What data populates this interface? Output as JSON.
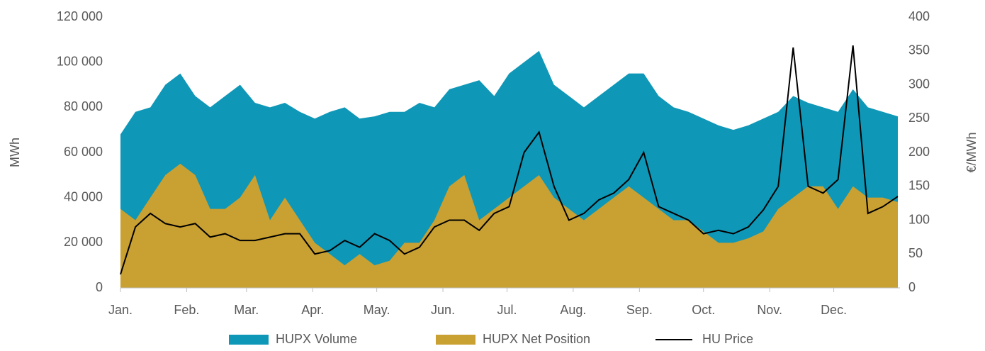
{
  "chart_data": {
    "type": "area-line",
    "x": [
      0,
      7,
      14,
      21,
      28,
      35,
      42,
      49,
      56,
      63,
      70,
      77,
      84,
      91,
      98,
      105,
      112,
      119,
      126,
      133,
      140,
      147,
      154,
      161,
      168,
      175,
      182,
      189,
      196,
      203,
      210,
      217,
      224,
      231,
      238,
      245,
      252,
      259,
      266,
      273,
      280,
      287,
      294,
      301,
      308,
      315,
      322,
      329,
      336,
      343,
      350,
      357,
      364
    ],
    "xlim": [
      0,
      365
    ],
    "xticks": [
      {
        "value": 0,
        "label": "Jan."
      },
      {
        "value": 31,
        "label": "Feb."
      },
      {
        "value": 59,
        "label": "Mar."
      },
      {
        "value": 90,
        "label": "Apr."
      },
      {
        "value": 120,
        "label": "May."
      },
      {
        "value": 151,
        "label": "Jun."
      },
      {
        "value": 181,
        "label": "Jul."
      },
      {
        "value": 212,
        "label": "Aug."
      },
      {
        "value": 243,
        "label": "Sep."
      },
      {
        "value": 273,
        "label": "Oct."
      },
      {
        "value": 304,
        "label": "Nov."
      },
      {
        "value": 334,
        "label": "Dec."
      }
    ],
    "ylabel": "MWh",
    "y2label": "€/MWh",
    "ylim": [
      0,
      120000
    ],
    "yticks": [
      0,
      {
        "value": 20000,
        "label": "20 000"
      },
      {
        "value": 40000,
        "label": "40 000"
      },
      {
        "value": 60000,
        "label": "60 000"
      },
      {
        "value": 80000,
        "label": "80 000"
      },
      {
        "value": 100000,
        "label": "100 000"
      },
      {
        "value": 120000,
        "label": "120 000"
      }
    ],
    "y2lim": [
      0,
      400
    ],
    "y2ticks": [
      0,
      50,
      100,
      150,
      200,
      250,
      300,
      350,
      400
    ],
    "grid": false,
    "legend": "bottom",
    "series": [
      {
        "name": "HUPX Volume",
        "kind": "area",
        "color": "#0e97b7",
        "values": [
          68000,
          78000,
          80000,
          90000,
          95000,
          85000,
          80000,
          85000,
          90000,
          82000,
          80000,
          82000,
          78000,
          75000,
          78000,
          80000,
          75000,
          76000,
          78000,
          78000,
          82000,
          80000,
          88000,
          90000,
          92000,
          85000,
          95000,
          100000,
          105000,
          90000,
          85000,
          80000,
          85000,
          90000,
          95000,
          95000,
          85000,
          80000,
          78000,
          75000,
          72000,
          70000,
          72000,
          75000,
          78000,
          85000,
          82000,
          80000,
          78000,
          88000,
          80000,
          78000,
          76000
        ]
      },
      {
        "name": "HUPX Net Position",
        "kind": "area",
        "color": "#c9a032",
        "values": [
          35000,
          30000,
          40000,
          50000,
          55000,
          50000,
          35000,
          35000,
          40000,
          50000,
          30000,
          40000,
          30000,
          20000,
          15000,
          10000,
          15000,
          10000,
          12000,
          20000,
          20000,
          30000,
          45000,
          50000,
          30000,
          35000,
          40000,
          45000,
          50000,
          40000,
          35000,
          30000,
          35000,
          40000,
          45000,
          40000,
          35000,
          30000,
          30000,
          25000,
          20000,
          20000,
          22000,
          25000,
          35000,
          40000,
          45000,
          45000,
          35000,
          45000,
          40000,
          40000,
          38000
        ]
      },
      {
        "name": "HU Price",
        "kind": "line",
        "axis": "y2",
        "color": "#000000",
        "values": [
          20,
          90,
          110,
          95,
          90,
          95,
          75,
          80,
          70,
          70,
          75,
          80,
          80,
          50,
          55,
          70,
          60,
          80,
          70,
          50,
          60,
          90,
          100,
          100,
          85,
          110,
          120,
          200,
          230,
          150,
          100,
          110,
          130,
          140,
          160,
          200,
          120,
          110,
          100,
          80,
          85,
          80,
          90,
          115,
          150,
          355,
          150,
          140,
          160,
          358,
          110,
          120,
          135
        ]
      }
    ]
  }
}
